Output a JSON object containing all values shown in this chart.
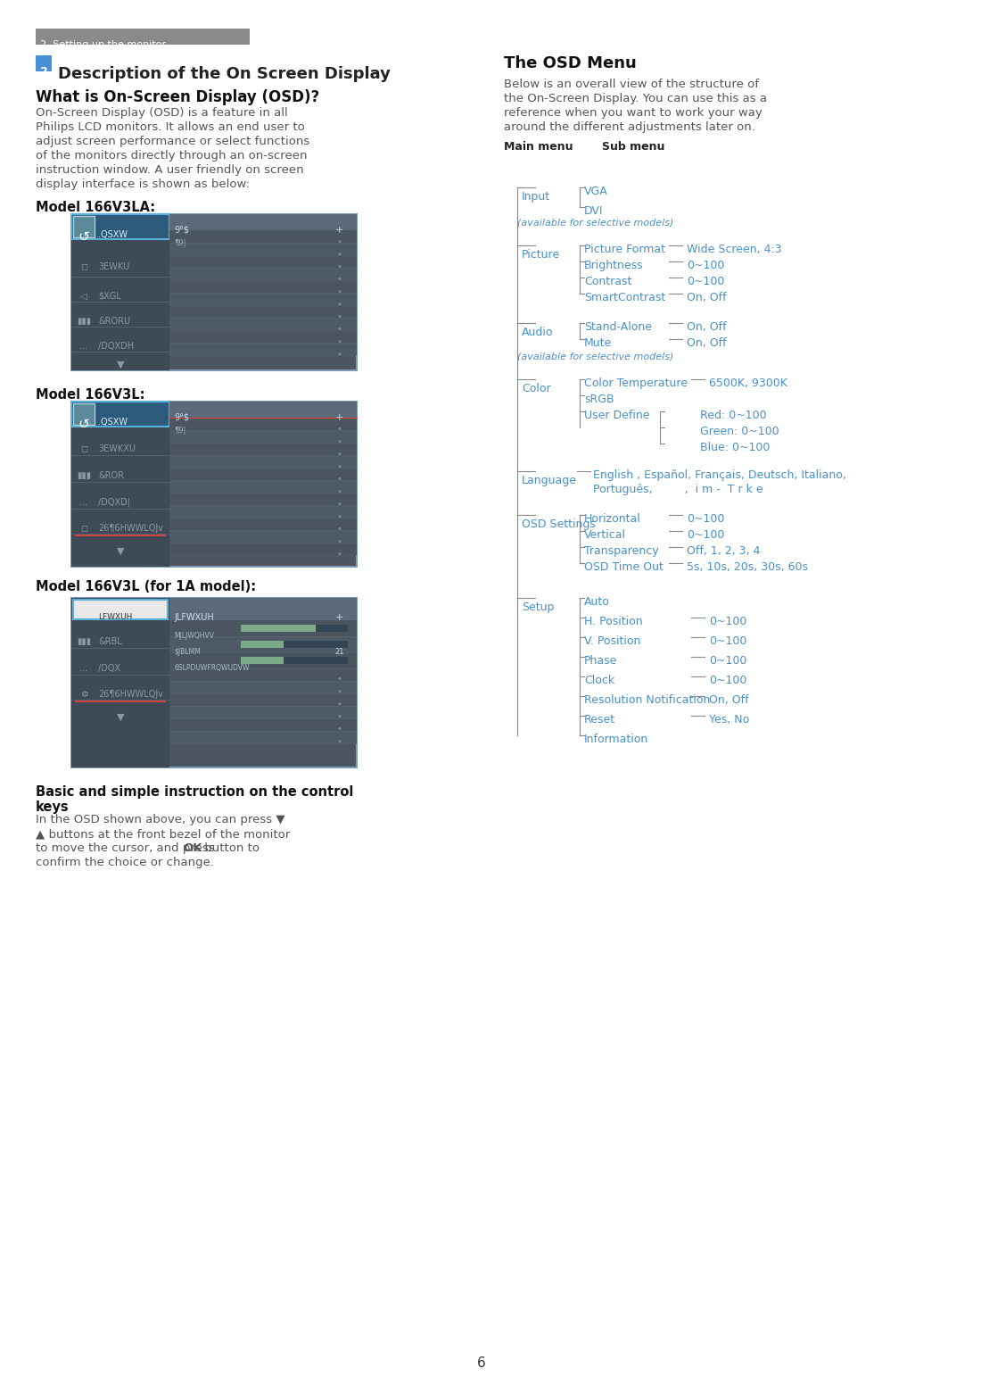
{
  "page_bg": "#ffffff",
  "header_bg": "#8a8a8a",
  "header_text": "2. Setting up the monitor",
  "header_text_color": "#ffffff",
  "section_num_bg": "#4a90d9",
  "section_num_text": "2",
  "section_title": "Description of the On Screen Display",
  "subsection1_title": "What is On-Screen Display (OSD)?",
  "body_text1": "On-Screen Display (OSD) is a feature in all\nPhilips LCD monitors. It allows an end user to\nadjust screen performance or select functions\nof the monitors directly through an on-screen\ninstruction window. A user friendly on screen\ndisplay interface is shown as below:",
  "model1_label": "Model 166V3LA:",
  "model2_label": "Model 166V3L:",
  "model3_label": "Model 166V3L (for 1A model):",
  "osd_bg": "#4a5560",
  "osd_selected_bg": "#3a6a8a",
  "osd_border_color": "#5ab0d8",
  "osd_text_color": "#c0c8d0",
  "osd_selected_text_color": "#ffffff",
  "osd_bar_color": "#8a3030",
  "control_keys_title": "Basic and simple instruction on the control\nkeys",
  "control_keys_body": "In the OSD shown above, you can press ▼\n▲ buttons at the front bezel of the monitor\nto move the cursor, and press OK button to\nconfirm the choice or change.",
  "osd_menu_title": "The OSD Menu",
  "osd_desc": "Below is an overall view of the structure of\nthe On-Screen Display. You can use this as a\nreference when you want to work your way\naround the different adjustments later on.",
  "main_menu_label": "Main menu",
  "sub_menu_label": "Sub menu",
  "blue_color": "#4a90c8",
  "line_color": "#555555",
  "menu_items": [
    {
      "main": "Input",
      "note": "(available for selective models)",
      "subs": [
        "VGA",
        "DVI"
      ],
      "sub_note": ""
    },
    {
      "main": "Picture",
      "note": "",
      "subs": [
        "Picture Format",
        "Brightness",
        "Contrast",
        "SmartContrast"
      ],
      "values": [
        "Wide Screen, 4:3",
        "0~100",
        "0~100",
        "On, Off"
      ]
    },
    {
      "main": "Audio",
      "note": "(available for selective models)",
      "subs": [
        "Stand-Alone",
        "Mute"
      ],
      "values": [
        "On, Off",
        "On, Off"
      ]
    },
    {
      "main": "Color",
      "note": "",
      "subs": [
        "Color Temperature",
        "sRGB",
        "User Define"
      ],
      "values": [
        "6500K, 9300K",
        "",
        ""
      ],
      "user_define": [
        "Red: 0~100",
        "Green: 0~100",
        "Blue: 0~100"
      ]
    },
    {
      "main": "Language",
      "note": "",
      "subs": [
        "English , Español, Français, Deutsch, Italiano,\nPortuguês,        ,  i m -  T r k e"
      ],
      "values": [
        ""
      ]
    },
    {
      "main": "OSD Settings",
      "note": "",
      "subs": [
        "Horizontal",
        "Vertical",
        "Transparency",
        "OSD Time Out"
      ],
      "values": [
        "0~100",
        "0~100",
        "Off, 1, 2, 3, 4",
        "5s, 10s, 20s, 30s, 60s"
      ]
    },
    {
      "main": "Setup",
      "note": "",
      "subs": [
        "Auto",
        "H. Position",
        "V. Position",
        "Phase",
        "Clock",
        "Resolution Notification",
        "Reset",
        "Information"
      ],
      "values": [
        "",
        "0~100",
        "0~100",
        "0~100",
        "0~100",
        "On, Off",
        "Yes, No",
        ""
      ]
    }
  ],
  "page_number": "6"
}
